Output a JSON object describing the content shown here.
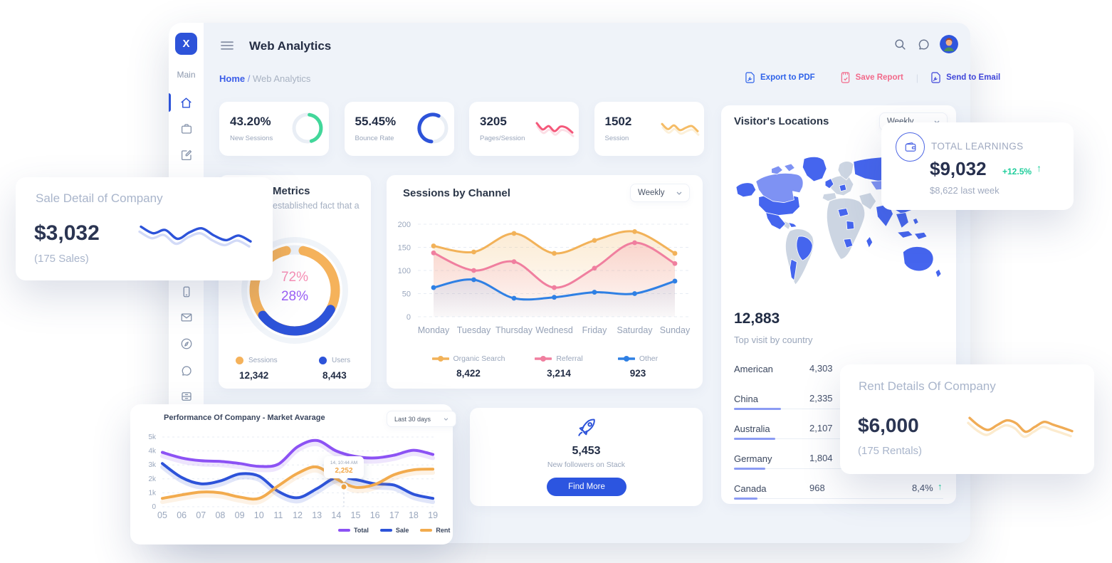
{
  "header": {
    "title": "Web Analytics"
  },
  "sidebar": {
    "logo": "X",
    "section": "Main"
  },
  "breadcrumb": {
    "home": "Home",
    "separator": "/",
    "current": "Web Analytics"
  },
  "actions": {
    "export_pdf": "Export to PDF",
    "save_report": "Save Report",
    "divider": "|",
    "send_email": "Send to Email"
  },
  "stat_cards": [
    {
      "value": "43.20%",
      "label": "New Sessions",
      "kind": "ring",
      "pct": 43.2,
      "start": 8,
      "color": "#42d79a"
    },
    {
      "value": "55.45%",
      "label": "Bounce Rate",
      "kind": "ring",
      "pct": 55.45,
      "start": 186,
      "color": "#2d53d9"
    },
    {
      "value": "3205",
      "label": "Pages/Session",
      "kind": "spark",
      "color": "#f4587a",
      "echo": "#fbd0da",
      "values": [
        0.25,
        0.62,
        0.42,
        0.72,
        0.45,
        0.52,
        0.8
      ]
    },
    {
      "value": "1502",
      "label": "Session",
      "kind": "spark",
      "color": "#f5bc66",
      "echo": "#fbe9c9",
      "values": [
        0.3,
        0.6,
        0.38,
        0.66,
        0.52,
        0.42,
        0.72
      ]
    }
  ],
  "sale_card": {
    "title": "Sale Detail of Company",
    "value": "$3,032",
    "subtitle": "(175 Sales)",
    "color": "#2d53d9",
    "echo": "#c3cdf4",
    "spark": [
      0.25,
      0.45,
      0.35,
      0.62,
      0.42,
      0.3,
      0.52,
      0.66,
      0.52,
      0.7
    ]
  },
  "rent_card": {
    "title": "Rent Details Of Company",
    "value": "$6,000",
    "subtitle": "(175 Rentals)",
    "color": "#f0ac56",
    "echo": "#fbe4bd",
    "spark": [
      0.22,
      0.48,
      0.62,
      0.45,
      0.3,
      0.4,
      0.68,
      0.52,
      0.35,
      0.45,
      0.55,
      0.66
    ]
  },
  "learnings_card": {
    "label": "TOTAL LEARNINGS",
    "value": "$9,032",
    "delta": "+12.5%",
    "arrow": "↑",
    "subtitle": "$8,622 last week",
    "delta_color": "#21ce9c"
  },
  "metrics_card": {
    "title": "Metrics",
    "subtitle": "established fact that a",
    "donut": {
      "values": [
        72,
        28
      ],
      "colors": [
        "#f5b25b",
        "#2d53d9"
      ],
      "labels": [
        "72%",
        "28%"
      ],
      "label_colors": [
        "#f78fb5",
        "#9a5ff5"
      ]
    },
    "legend": [
      {
        "name": "Sessions",
        "value": "12,342",
        "color": "#f5b25b"
      },
      {
        "name": "Users",
        "value": "8,443",
        "color": "#2d53d9"
      }
    ]
  },
  "chart_data": [
    {
      "type": "line",
      "title": "Sessions by Channel",
      "dropdown": "Weekly",
      "yticks": [
        "0",
        "50",
        "100",
        "150",
        "200"
      ],
      "ylim": [
        0,
        200
      ],
      "grid": true,
      "legend_position": "bottom",
      "categories": [
        "Monday",
        "Tuesday",
        "Thursday",
        "Wednesd",
        "Friday",
        "Saturday",
        "Sunday"
      ],
      "series": [
        {
          "name": "Organic Search",
          "total": "8,422",
          "color": "#f2b259",
          "values": [
            153,
            140,
            180,
            137,
            165,
            184,
            137
          ]
        },
        {
          "name": "Referral",
          "total": "3,214",
          "color": "#f07f9f",
          "values": [
            138,
            100,
            119,
            63,
            105,
            160,
            115
          ]
        },
        {
          "name": "Other",
          "total": "923",
          "color": "#2f80e4",
          "values": [
            63,
            80,
            40,
            42,
            53,
            50,
            77
          ]
        }
      ]
    },
    {
      "type": "line",
      "title": "Performance Of Company - Market Avarage",
      "dropdown": "Last 30 days",
      "yticks": [
        "0",
        "1k",
        "2k",
        "3k",
        "4k",
        "5k"
      ],
      "ylim": [
        0,
        5000
      ],
      "grid": true,
      "legend_position": "bottom-right",
      "categories": [
        "05",
        "06",
        "07",
        "08",
        "09",
        "10",
        "11",
        "12",
        "13",
        "14",
        "15",
        "16",
        "17",
        "18",
        "19"
      ],
      "series": [
        {
          "name": "Total",
          "color": "#8c52f4",
          "values": [
            3900,
            3500,
            3300,
            3250,
            3100,
            2900,
            3050,
            4300,
            4750,
            4000,
            3600,
            3500,
            3700,
            4050,
            3750
          ]
        },
        {
          "name": "Sale",
          "color": "#2d53d9",
          "values": [
            3100,
            2100,
            1650,
            1850,
            2350,
            2200,
            1100,
            650,
            1300,
            2100,
            1950,
            1650,
            1550,
            900,
            600
          ]
        },
        {
          "name": "Rent",
          "color": "#f2ab4e",
          "values": [
            600,
            850,
            1050,
            1000,
            700,
            600,
            1500,
            2400,
            2850,
            2000,
            1400,
            1600,
            2300,
            2650,
            2700
          ]
        }
      ],
      "tooltip": {
        "label": "14, 10:44 AM",
        "value": "2,252"
      }
    }
  ],
  "visitors": {
    "title": "Visitor's Locations",
    "dropdown": "Weekly",
    "total": "12,883",
    "subtitle": "Top visit by country",
    "countries": [
      {
        "name": "American",
        "value": "4,303",
        "bar": 0
      },
      {
        "name": "China",
        "value": "2,335",
        "bar": 66
      },
      {
        "name": "Australia",
        "value": "2,107",
        "bar": 58
      },
      {
        "name": "Germany",
        "value": "1,804",
        "bar": 44
      },
      {
        "name": "Canada",
        "value": "968",
        "bar": 33,
        "pct": "8,4%",
        "arrow": "↑"
      }
    ]
  },
  "followers": {
    "value": "5,453",
    "label": "New followers on Stack",
    "button": "Find More"
  }
}
